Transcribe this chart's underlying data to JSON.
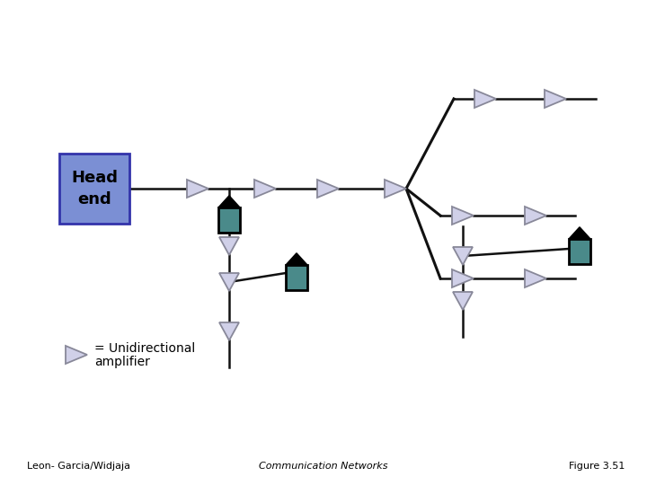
{
  "bg_color": "#ffffff",
  "head_end_color": "#7b8fd4",
  "head_end_border": "#3333aa",
  "amp_fill": "#d0d0e8",
  "amp_edge": "#888899",
  "splitter_rect_color": "#4a8a8a",
  "line_color": "#111111",
  "title_left": "Leon- Garcia/Widjaja",
  "title_center": "Communication Networks",
  "title_right": "Figure 3.51"
}
